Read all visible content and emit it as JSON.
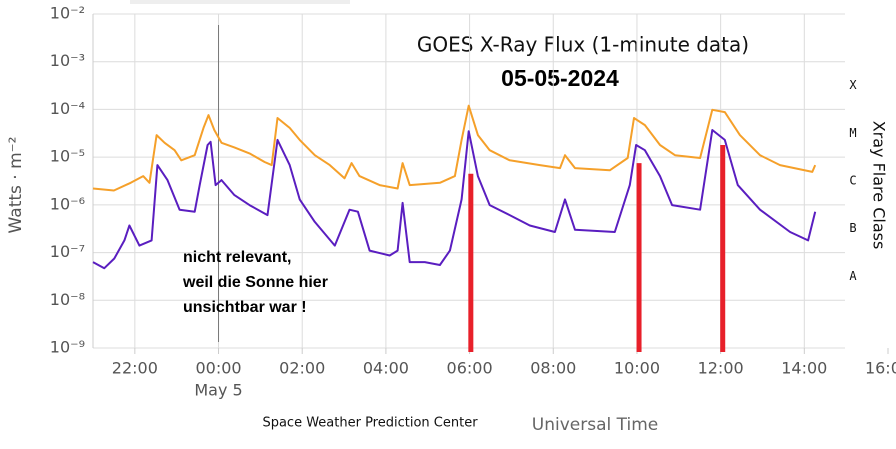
{
  "chart_data": {
    "type": "line",
    "title": "GOES X-Ray Flux (1-minute data)",
    "subtitle": "05-05-2024",
    "y_label": "Watts · m⁻²",
    "x_label": "Universal Time",
    "credit": "Space Weather Prediction Center",
    "y2_label": "Xray Flare Class",
    "log_y": true,
    "grid": true,
    "xlim": [
      -3,
      16
    ],
    "xticks": [
      {
        "value": -2,
        "label": "22:00"
      },
      {
        "value": 0,
        "label": "00:00"
      },
      {
        "value": 2,
        "label": "02:00"
      },
      {
        "value": 4,
        "label": "04:00"
      },
      {
        "value": 6,
        "label": "06:00"
      },
      {
        "value": 8,
        "label": "08:00"
      },
      {
        "value": 10,
        "label": "10:00"
      },
      {
        "value": 12,
        "label": "12:00"
      },
      {
        "value": 14,
        "label": "14:00"
      },
      {
        "value": 16,
        "label": "16:00"
      }
    ],
    "x_date_label": "May 5",
    "ylim": [
      1e-09,
      0.01
    ],
    "yticks": [
      {
        "value": 0.01,
        "label": "10⁻²"
      },
      {
        "value": 0.001,
        "label": "10⁻³"
      },
      {
        "value": 0.0001,
        "label": "10⁻⁴"
      },
      {
        "value": 1e-05,
        "label": "10⁻⁵"
      },
      {
        "value": 1e-06,
        "label": "10⁻⁶"
      },
      {
        "value": 1e-07,
        "label": "10⁻⁷"
      },
      {
        "value": 1e-08,
        "label": "10⁻⁸"
      },
      {
        "value": 1e-09,
        "label": "10⁻⁹"
      }
    ],
    "y2ticks": [
      {
        "value": 0.0001,
        "label": "X"
      },
      {
        "value": 1e-05,
        "label": "M"
      },
      {
        "value": 1e-06,
        "label": "C"
      },
      {
        "value": 1e-07,
        "label": "B"
      },
      {
        "value": 1e-08,
        "label": "A"
      }
    ],
    "series": [
      {
        "color": "#f5a02a",
        "x": [
          -3,
          -2.5,
          -2.1,
          -1.8,
          -1.65,
          -1.48,
          -1.29,
          -1.05,
          -0.89,
          -0.57,
          -0.36,
          -0.24,
          -0.1,
          0.07,
          0.38,
          0.74,
          1.1,
          1.27,
          1.41,
          1.7,
          1.94,
          2.3,
          2.66,
          3.01,
          3.18,
          3.37,
          3.85,
          4.28,
          4.4,
          4.57,
          5.29,
          5.65,
          5.81,
          5.98,
          6.2,
          6.48,
          6.96,
          7.68,
          8.16,
          8.28,
          8.52,
          9.35,
          9.78,
          9.93,
          10.19,
          10.55,
          10.91,
          11.51,
          11.8,
          12.1,
          12.46,
          12.94,
          13.42,
          14.19,
          14.26
        ],
        "values": [
          2.2e-06,
          2e-06,
          2.9e-06,
          4e-06,
          2.9e-06,
          2.9e-05,
          2e-05,
          1.4e-05,
          8.6e-06,
          1.1e-05,
          4.1e-05,
          7.6e-05,
          3.7e-05,
          2e-05,
          1.6e-05,
          1.2e-05,
          7.9e-06,
          6.8e-06,
          6.6e-05,
          4.1e-05,
          2.3e-05,
          1.1e-05,
          6.8e-06,
          3.6e-06,
          7.5e-06,
          4e-06,
          2.6e-06,
          2.2e-06,
          7.5e-06,
          2.6e-06,
          2.9e-06,
          4e-06,
          2.3e-05,
          0.00012,
          2.9e-05,
          1.4e-05,
          8.6e-06,
          6.8e-06,
          5.9e-06,
          1.1e-05,
          5.9e-06,
          5.3e-06,
          9.6e-06,
          6.6e-05,
          4.7e-05,
          1.8e-05,
          1.1e-05,
          9.6e-06,
          9.8e-05,
          8.8e-05,
          2.9e-05,
          1.1e-05,
          6.8e-06,
          4.9e-06,
          6.8e-06
        ]
      },
      {
        "color": "#5a1ec0",
        "x": [
          -3,
          -2.73,
          -2.49,
          -2.25,
          -2.13,
          -1.89,
          -1.6,
          -1.46,
          -1.22,
          -0.93,
          -0.57,
          -0.45,
          -0.26,
          -0.19,
          -0.07,
          0.07,
          0.38,
          0.74,
          1.17,
          1.41,
          1.7,
          1.94,
          2.3,
          2.78,
          3.13,
          3.33,
          3.61,
          4.09,
          4.28,
          4.4,
          4.57,
          4.93,
          5.29,
          5.53,
          5.81,
          5.98,
          6.2,
          6.48,
          6.96,
          7.44,
          8.04,
          8.28,
          8.52,
          9.47,
          9.83,
          9.98,
          10.19,
          10.55,
          10.84,
          11.51,
          11.8,
          12.1,
          12.41,
          12.94,
          13.66,
          14.09,
          14.26
        ],
        "values": [
          6.3e-08,
          4.7e-08,
          7.5e-08,
          1.8e-07,
          3.7e-07,
          1.4e-07,
          1.8e-07,
          6.8e-06,
          3.3e-06,
          7.9e-07,
          7.2e-07,
          2.6e-06,
          1.8e-05,
          2.1e-05,
          2.6e-06,
          3.3e-06,
          1.6e-06,
          9.9e-07,
          6.1e-07,
          2.3e-05,
          6.8e-06,
          1.3e-06,
          4.4e-07,
          1.4e-07,
          7.9e-07,
          7.2e-07,
          1.1e-07,
          8.7e-08,
          1.1e-07,
          1.1e-06,
          6.3e-08,
          6.3e-08,
          5.5e-08,
          1.1e-07,
          1.3e-06,
          3.5e-05,
          4e-06,
          9.9e-07,
          6.1e-07,
          3.7e-07,
          2.7e-07,
          1.3e-06,
          3e-07,
          2.7e-07,
          2.6e-06,
          1.8e-05,
          1.4e-05,
          4e-06,
          9.9e-07,
          7.9e-07,
          3.7e-05,
          2.3e-05,
          2.6e-06,
          7.9e-07,
          2.7e-07,
          1.8e-07,
          7.2e-07
        ]
      }
    ],
    "day_line_x": 0,
    "highlights": {
      "color": "#e8202a",
      "x": [
        6.03,
        10.05,
        12.05
      ],
      "tops": [
        4.5e-06,
        7.5e-06,
        1.8e-05
      ]
    },
    "annotation": [
      "nicht relevant,",
      "weil die Sonne hier",
      "unsichtbar war !"
    ]
  }
}
